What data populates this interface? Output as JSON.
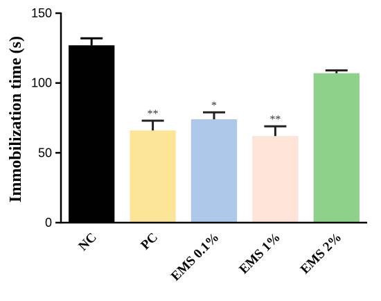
{
  "chart_data": {
    "type": "bar",
    "title": "",
    "xlabel": "",
    "ylabel": "Immobilization time (s)",
    "ylim": [
      0,
      150
    ],
    "yticks": [
      0,
      50,
      100,
      150
    ],
    "grid": false,
    "categories": [
      "NC",
      "PC",
      "EMS 0.1%",
      "EMS 1%",
      "EMS 2%"
    ],
    "values": [
      127,
      66,
      74,
      62,
      107
    ],
    "errors": [
      5,
      7,
      5,
      7,
      2
    ],
    "colors": [
      "#000000",
      "#fde598",
      "#adc8e8",
      "#fde3d8",
      "#8ed18b"
    ],
    "significance": [
      "",
      "**",
      "*",
      "**",
      ""
    ]
  }
}
